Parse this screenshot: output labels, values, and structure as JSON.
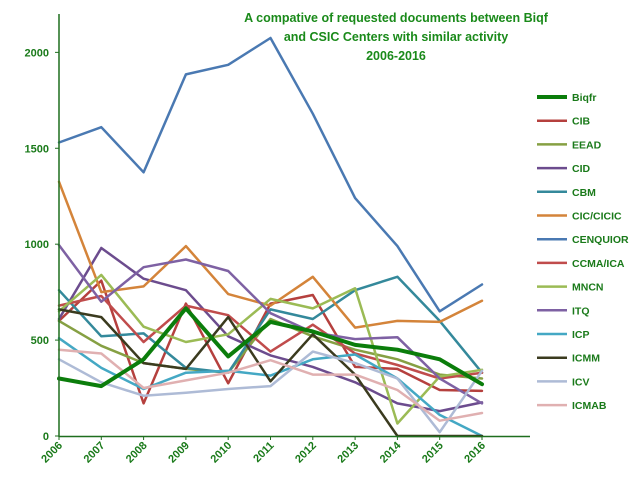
{
  "chart_data": {
    "type": "line",
    "title_lines": [
      "A compative of requested documents between Biqf",
      "and CSIC Centers with similar activity",
      "2006-2016"
    ],
    "x": [
      "2006",
      "2007",
      "2008",
      "2009",
      "2010",
      "2011",
      "2012",
      "2013",
      "2014",
      "2015",
      "2016"
    ],
    "ylim": [
      0,
      2200
    ],
    "yticks": [
      0,
      500,
      1000,
      1500,
      2000
    ],
    "grid": false,
    "legend_position": "right",
    "series": [
      {
        "name": "Biqfr",
        "color": "#0b7d0b",
        "width": 4,
        "values": [
          300,
          260,
          400,
          665,
          415,
          595,
          545,
          475,
          450,
          400,
          270
        ]
      },
      {
        "name": "CIB",
        "color": "#b5403e",
        "width": 2.5,
        "values": [
          600,
          810,
          170,
          690,
          275,
          690,
          735,
          360,
          350,
          240,
          235
        ]
      },
      {
        "name": "EEAD",
        "color": "#86a043",
        "width": 2.5,
        "values": [
          600,
          470,
          380,
          350,
          330,
          610,
          520,
          450,
          400,
          320,
          300
        ]
      },
      {
        "name": "CID",
        "color": "#6c4c8e",
        "width": 2.5,
        "values": [
          610,
          980,
          820,
          760,
          520,
          420,
          360,
          280,
          170,
          130,
          175
        ]
      },
      {
        "name": "CBM",
        "color": "#34899b",
        "width": 2.5,
        "values": [
          760,
          520,
          535,
          355,
          330,
          660,
          610,
          760,
          830,
          600,
          330
        ]
      },
      {
        "name": "CIC/CICIC",
        "color": "#d4843a",
        "width": 2.5,
        "values": [
          1325,
          750,
          780,
          990,
          740,
          680,
          830,
          565,
          600,
          595,
          705
        ]
      },
      {
        "name": "CENQUIOR",
        "color": "#4a79b2",
        "width": 2.5,
        "values": [
          1530,
          1610,
          1375,
          1885,
          1935,
          2075,
          1680,
          1240,
          990,
          650,
          790
        ]
      },
      {
        "name": "CCMA/ICA",
        "color": "#c04c4c",
        "width": 2.5,
        "values": [
          680,
          730,
          490,
          680,
          630,
          440,
          580,
          430,
          370,
          300,
          330
        ]
      },
      {
        "name": "MNCN",
        "color": "#9bbb55",
        "width": 2.5,
        "values": [
          650,
          840,
          570,
          490,
          530,
          715,
          665,
          770,
          65,
          310,
          345
        ]
      },
      {
        "name": "ITQ",
        "color": "#7e61a3",
        "width": 2.5,
        "values": [
          995,
          700,
          880,
          920,
          860,
          640,
          540,
          505,
          515,
          300,
          170
        ]
      },
      {
        "name": "ICP",
        "color": "#44a8c4",
        "width": 2.5,
        "values": [
          510,
          355,
          245,
          330,
          340,
          315,
          400,
          425,
          300,
          110,
          0
        ]
      },
      {
        "name": "ICMM",
        "color": "#3b3b1f",
        "width": 2.5,
        "values": [
          660,
          620,
          380,
          350,
          620,
          285,
          530,
          320,
          0,
          0,
          0
        ]
      },
      {
        "name": "ICV",
        "color": "#aebbd6",
        "width": 2.5,
        "values": [
          400,
          280,
          210,
          225,
          245,
          260,
          440,
          380,
          300,
          20,
          340
        ]
      },
      {
        "name": "ICMAB",
        "color": "#e0b0b1",
        "width": 2.5,
        "values": [
          450,
          430,
          250,
          290,
          330,
          395,
          320,
          320,
          240,
          80,
          120
        ]
      }
    ]
  }
}
